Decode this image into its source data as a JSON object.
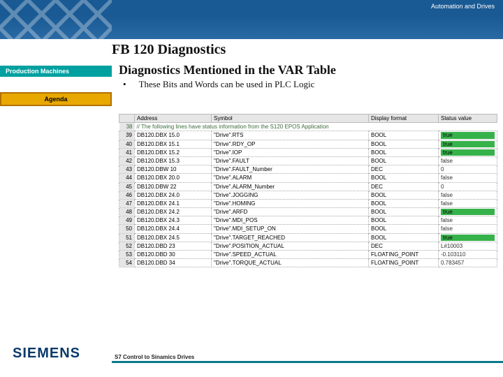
{
  "header": {
    "tagline": "Automation and Drives",
    "title": "FB 120 Diagnostics"
  },
  "sidebar": {
    "tab1": "Production Machines",
    "tab2": "Agenda"
  },
  "content": {
    "subtitle": "Diagnostics Mentioned in the VAR Table",
    "bullet": "These Bits and Words can be used in PLC Logic"
  },
  "table": {
    "headers": {
      "num": "",
      "address": "Address",
      "symbol": "Symbol",
      "format": "Display format",
      "status": "Status value"
    },
    "comment": "// The following lines have status information from the S120 EPOS Application",
    "rows": [
      {
        "n": "39",
        "addr": "DB120.DBX  15.0",
        "sym": "\"Drive\".RTS",
        "fmt": "BOOL",
        "stat": "true",
        "green": true
      },
      {
        "n": "40",
        "addr": "DB120.DBX  15.1",
        "sym": "\"Drive\".RDY_OP",
        "fmt": "BOOL",
        "stat": "true",
        "green": true
      },
      {
        "n": "41",
        "addr": "DB120.DBX  15.2",
        "sym": "\"Drive\".IOP",
        "fmt": "BOOL",
        "stat": "true",
        "green": true
      },
      {
        "n": "42",
        "addr": "DB120.DBX  15.3",
        "sym": "\"Drive\".FAULT",
        "fmt": "BOOL",
        "stat": "false",
        "green": false
      },
      {
        "n": "43",
        "addr": "DB120.DBW  10",
        "sym": "\"Drive\".FAULT_Number",
        "fmt": "DEC",
        "stat": "0",
        "green": false
      },
      {
        "n": "44",
        "addr": "DB120.DBX  20.0",
        "sym": "\"Drive\".ALARM",
        "fmt": "BOOL",
        "stat": "false",
        "green": false
      },
      {
        "n": "45",
        "addr": "DB120.DBW  22",
        "sym": "\"Drive\".ALARM_Number",
        "fmt": "DEC",
        "stat": "0",
        "green": false
      },
      {
        "n": "46",
        "addr": "DB120.DBX  24.0",
        "sym": "\"Drive\".JOGGING",
        "fmt": "BOOL",
        "stat": "false",
        "green": false
      },
      {
        "n": "47",
        "addr": "DB120.DBX  24.1",
        "sym": "\"Drive\".HOMING",
        "fmt": "BOOL",
        "stat": "false",
        "green": false
      },
      {
        "n": "48",
        "addr": "DB120.DBX  24.2",
        "sym": "\"Drive\".ARFD",
        "fmt": "BOOL",
        "stat": "true",
        "green": true
      },
      {
        "n": "49",
        "addr": "DB120.DBX  24.3",
        "sym": "\"Drive\".MDI_POS",
        "fmt": "BOOL",
        "stat": "false",
        "green": false
      },
      {
        "n": "50",
        "addr": "DB120.DBX  24.4",
        "sym": "\"Drive\".MDI_SETUP_ON",
        "fmt": "BOOL",
        "stat": "false",
        "green": false
      },
      {
        "n": "51",
        "addr": "DB120.DBX  24.5",
        "sym": "\"Drive\".TARGET_REACHED",
        "fmt": "BOOL",
        "stat": "true",
        "green": true
      },
      {
        "n": "52",
        "addr": "DB120.DBD  23",
        "sym": "\"Drive\".POSITION_ACTUAL",
        "fmt": "DEC",
        "stat": "L#10003",
        "green": false
      },
      {
        "n": "53",
        "addr": "DB120.DBD  30",
        "sym": "\"Drive\".SPEED_ACTUAL",
        "fmt": "FLOATING_POINT",
        "stat": "-0.103110",
        "green": false
      },
      {
        "n": "54",
        "addr": "DB120.DBD  34",
        "sym": "\"Drive\".TORQUE_ACTUAL",
        "fmt": "FLOATING_POINT",
        "stat": "0.783457",
        "green": false
      }
    ]
  },
  "footer": {
    "logo": "SIEMENS",
    "left": "S7 Control to Sinamics Drives",
    "right": ""
  },
  "style": {
    "colors": {
      "band": "#1a5a94",
      "teal": "#00a0a0",
      "yellow": "#e8a800",
      "true_bg": "#36b24a",
      "accent": "#0a7a8a"
    }
  }
}
